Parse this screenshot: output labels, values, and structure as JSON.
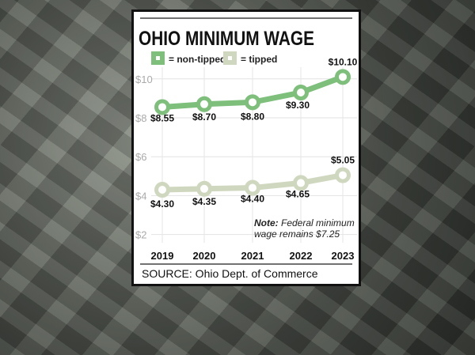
{
  "chart_data": {
    "type": "line",
    "title": "OHIO MINIMUM WAGE",
    "categories": [
      "2019",
      "2020",
      "2021",
      "2022",
      "2023"
    ],
    "series": [
      {
        "name": "= non-tipped",
        "color": "#7dbf7b",
        "values": [
          8.55,
          8.7,
          8.8,
          9.3,
          10.1
        ],
        "labels": [
          "$8.55",
          "$8.70",
          "$8.80",
          "$9.30",
          "$10.10"
        ]
      },
      {
        "name": "= tipped",
        "color": "#cfd8bf",
        "values": [
          4.3,
          4.35,
          4.4,
          4.65,
          5.05
        ],
        "labels": [
          "$4.30",
          "$4.35",
          "$4.40",
          "$4.65",
          "$5.05"
        ]
      }
    ],
    "yticks": [
      2,
      4,
      6,
      8,
      10
    ],
    "ytick_labels": [
      "$2",
      "$4",
      "$6",
      "$8",
      "$10"
    ],
    "ylim": [
      2,
      10
    ],
    "grid": true,
    "legend": "top-left",
    "note_bold": "Note:",
    "note_text1": " Federal minimum",
    "note_text2": "wage remains $7.25",
    "source": "SOURCE: Ohio Dept. of Commerce"
  }
}
